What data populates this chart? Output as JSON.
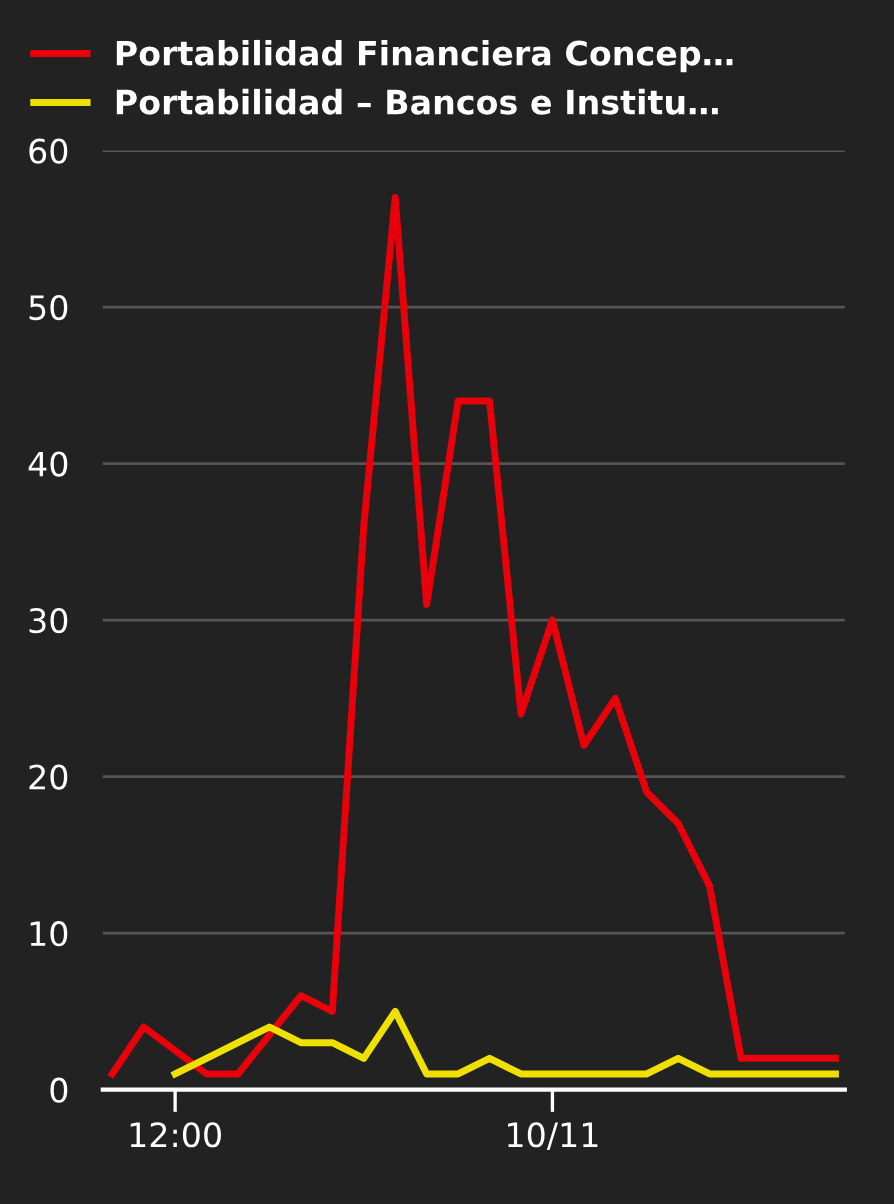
{
  "chart_data": {
    "type": "line",
    "categories": [
      null,
      null,
      "12:00",
      null,
      null,
      null,
      null,
      null,
      null,
      null,
      null,
      null,
      null,
      null,
      "10/11",
      null,
      null,
      null,
      null,
      null,
      null,
      null,
      null,
      null
    ],
    "ylim": [
      0,
      60
    ],
    "yticks": [
      0,
      10,
      20,
      30,
      40,
      50,
      60
    ],
    "grid": "y",
    "legend": "top left",
    "marker": "none",
    "line_style": "solid",
    "series": [
      {
        "name": "Portabilidad Financiera Concep…",
        "color": "#e8000b",
        "values": [
          1,
          4,
          2.5,
          1,
          1,
          3.5,
          6,
          5,
          36,
          57,
          31,
          44,
          44,
          24,
          30,
          22,
          25,
          19,
          17,
          13,
          2,
          2,
          2,
          2
        ]
      },
      {
        "name": "Portabilidad – Bancos e Institu…",
        "color": "#f0e000",
        "values": [
          null,
          null,
          1,
          2,
          3,
          4,
          3,
          3,
          2,
          5,
          1,
          1,
          2,
          1,
          1,
          1,
          1,
          1,
          2,
          1,
          1,
          1,
          1,
          1
        ]
      }
    ]
  }
}
